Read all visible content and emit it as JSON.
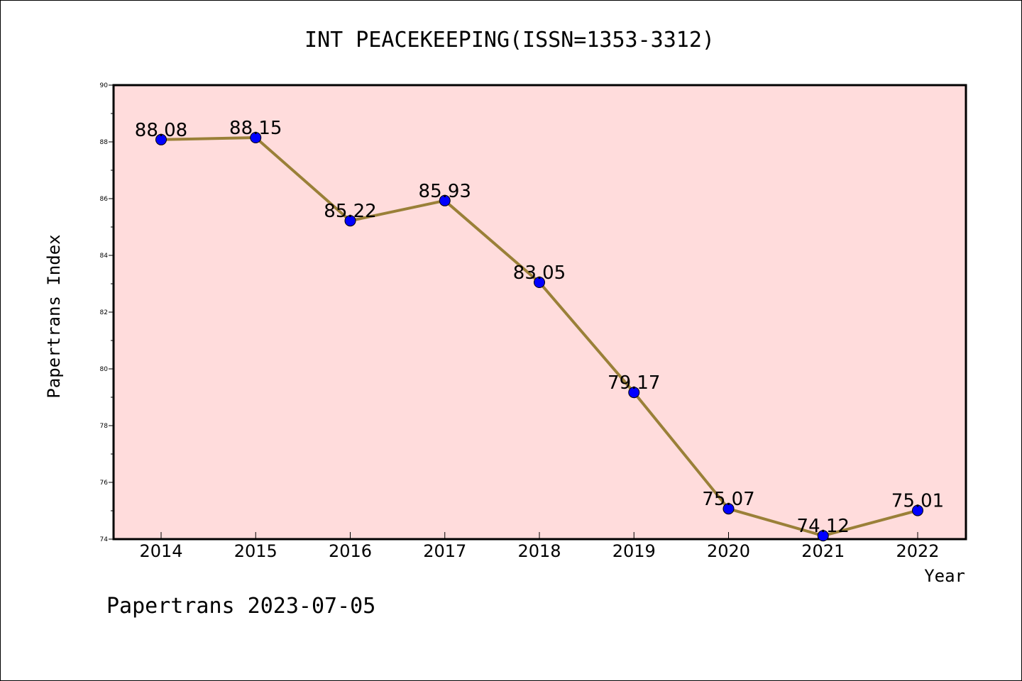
{
  "footer": {
    "text": "Papertrans 2023-07-05"
  },
  "colors": {
    "plot_background": "#ffdcdc",
    "line": "#9a8038",
    "marker": "#0000ff",
    "axis": "#000000"
  },
  "chart_data": {
    "type": "line",
    "title": "INT PEACEKEEPING(ISSN=1353-3312)",
    "xlabel": "Year",
    "ylabel": "Papertrans Index",
    "categories": [
      "2014",
      "2015",
      "2016",
      "2017",
      "2018",
      "2019",
      "2020",
      "2021",
      "2022"
    ],
    "series": [
      {
        "values": [
          88.08,
          88.15,
          85.22,
          85.93,
          83.05,
          79.17,
          75.07,
          74.12,
          75.01
        ],
        "labels": [
          "88.08",
          "88.15",
          "85.22",
          "85.93",
          "83.05",
          "79.17",
          "75.07",
          "74.12",
          "75.01"
        ]
      }
    ],
    "ylim": [
      74,
      90
    ],
    "yticks": [
      "74",
      "76",
      "78",
      "80",
      "82",
      "84",
      "86",
      "88",
      "90"
    ],
    "grid": false,
    "legend": "none"
  }
}
